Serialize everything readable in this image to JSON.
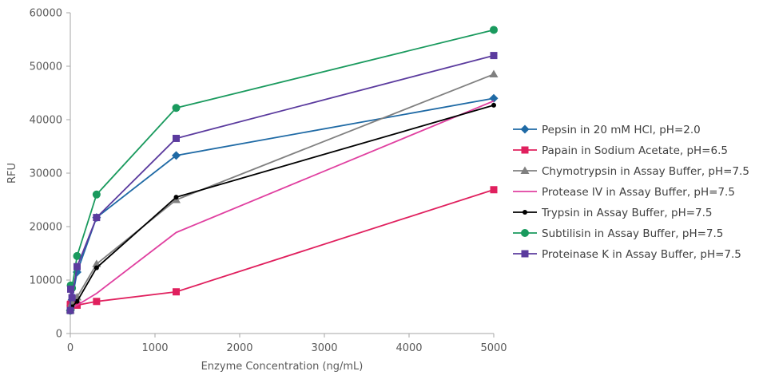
{
  "chart_data": {
    "type": "line",
    "title": "",
    "xlabel": "Enzyme Concentration (ng/mL)",
    "ylabel": "RFU",
    "xlim": [
      0,
      5000
    ],
    "ylim": [
      0,
      60000
    ],
    "xticks": [
      0,
      1000,
      2000,
      3000,
      4000,
      5000
    ],
    "yticks": [
      0,
      10000,
      20000,
      30000,
      40000,
      50000,
      60000
    ],
    "xtick_labels": [
      "0",
      "1000",
      "2000",
      "3000",
      "4000",
      "5000"
    ],
    "ytick_labels": [
      "0",
      "10000",
      "20000",
      "30000",
      "40000",
      "50000",
      "60000"
    ],
    "grid": false,
    "legend_position": "right",
    "series": [
      {
        "name": "Pepsin in 20 mM HCl, pH=2.0",
        "color": "#1f6aa5",
        "marker": "diamond",
        "x": [
          0,
          5,
          20,
          80,
          310,
          1250,
          5000
        ],
        "y": [
          4300,
          5200,
          6300,
          11500,
          21700,
          33300,
          44000
        ]
      },
      {
        "name": "Papain in Sodium Acetate, pH=6.5",
        "color": "#e0205e",
        "marker": "square",
        "x": [
          0,
          5,
          20,
          80,
          310,
          1250,
          5000
        ],
        "y": [
          5400,
          5500,
          5600,
          5300,
          6000,
          7800,
          26900
        ]
      },
      {
        "name": "Chymotrypsin in Assay Buffer, pH=7.5",
        "color": "#808080",
        "marker": "triangle",
        "x": [
          0,
          5,
          20,
          80,
          310,
          1250,
          5000
        ],
        "y": [
          4400,
          5000,
          5700,
          6800,
          13000,
          25000,
          48500
        ]
      },
      {
        "name": "Protease IV in Assay Buffer, pH=7.5",
        "color": "#e040a0",
        "marker": "none",
        "x": [
          0,
          5,
          20,
          80,
          310,
          1250,
          5000
        ],
        "y": [
          4300,
          4500,
          4700,
          5300,
          7500,
          18900,
          43500
        ]
      },
      {
        "name": "Trypsin in Assay Buffer, pH=7.5",
        "color": "#000000",
        "marker": "dot",
        "x": [
          0,
          5,
          20,
          80,
          310,
          1250,
          5000
        ],
        "y": [
          4300,
          4600,
          5000,
          6000,
          12300,
          25500,
          42700
        ]
      },
      {
        "name": "Subtilisin in Assay Buffer, pH=7.5",
        "color": "#1a9a5e",
        "marker": "circle",
        "x": [
          0,
          5,
          20,
          80,
          310,
          1250,
          5000
        ],
        "y": [
          4300,
          9000,
          8500,
          14500,
          26000,
          42200,
          56800
        ]
      },
      {
        "name": "Proteinase K in Assay Buffer, pH=7.5",
        "color": "#5b3b9e",
        "marker": "square",
        "x": [
          0,
          5,
          20,
          80,
          310,
          1250,
          5000
        ],
        "y": [
          4300,
          8300,
          6700,
          12500,
          21700,
          36500,
          52000
        ]
      }
    ]
  }
}
